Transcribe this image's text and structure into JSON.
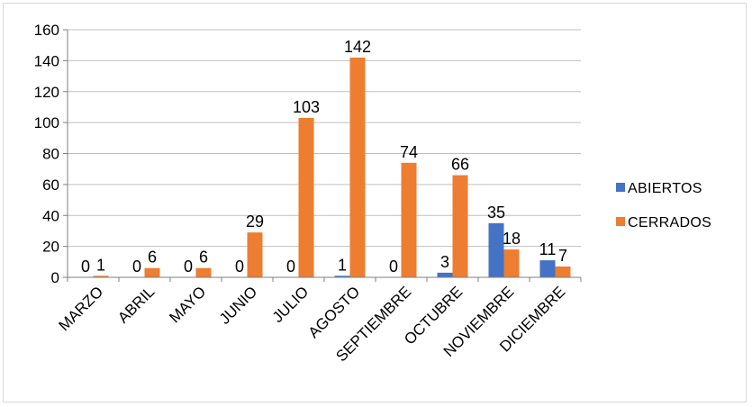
{
  "chart_data": {
    "type": "bar",
    "categories": [
      "MARZO",
      "ABRIL",
      "MAYO",
      "JUNIO",
      "JULIO",
      "AGOSTO",
      "SEPTIEMBRE",
      "OCTUBRE",
      "NOVIEMBRE",
      "DICIEMBRE"
    ],
    "series": [
      {
        "name": "ABIERTOS",
        "color": "#4472c4",
        "values": [
          0,
          0,
          0,
          0,
          0,
          1,
          0,
          3,
          35,
          11
        ]
      },
      {
        "name": "CERRADOS",
        "color": "#ed7d31",
        "values": [
          1,
          6,
          6,
          29,
          103,
          142,
          74,
          66,
          18,
          7
        ]
      }
    ],
    "ylim": [
      0,
      160
    ],
    "yticks": [
      0,
      20,
      40,
      60,
      80,
      100,
      120,
      140,
      160
    ],
    "grid": true,
    "gridColor": "#bfbfbf",
    "legend_position": "right",
    "data_labels": [
      [
        "0",
        "0",
        "0",
        "0",
        "0",
        "1",
        "0",
        "3",
        "35",
        "11"
      ],
      [
        "1",
        "6",
        "6",
        "29",
        "103",
        "142",
        "74",
        "66",
        "18",
        "7"
      ]
    ]
  }
}
